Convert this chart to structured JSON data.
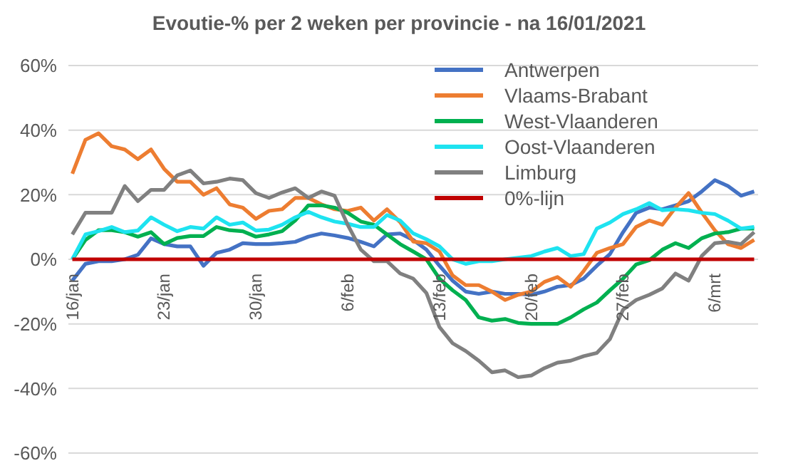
{
  "chart_data": {
    "type": "line",
    "title": "Evoutie-% per 2 weken per provincie - na 16/01/2021",
    "categories": [
      "16/jan",
      null,
      null,
      null,
      null,
      null,
      null,
      "23/jan",
      null,
      null,
      null,
      null,
      null,
      null,
      "30/jan",
      null,
      null,
      null,
      null,
      null,
      null,
      "6/feb",
      null,
      null,
      null,
      null,
      null,
      null,
      "13/feb",
      null,
      null,
      null,
      null,
      null,
      null,
      "20/feb",
      null,
      null,
      null,
      null,
      null,
      null,
      "27/feb",
      null,
      null,
      null,
      null,
      null,
      null,
      "6/mrt",
      null,
      null,
      null
    ],
    "series": [
      {
        "name": "Antwerpen",
        "color": "#4472c4",
        "values": [
          -6.6,
          -1.4,
          -0.6,
          -0.6,
          0,
          1.4,
          6.5,
          4.7,
          4,
          4,
          -2,
          2,
          3,
          5,
          4.7,
          4.7,
          5,
          5.4,
          7,
          8,
          7.4,
          6.6,
          5.4,
          4,
          7.7,
          8,
          6,
          3,
          -2,
          -6.6,
          -10,
          -10.7,
          -10,
          -10.7,
          -10.7,
          -11,
          -10,
          -8.5,
          -8,
          -6,
          -2,
          1.6,
          8.4,
          14.4,
          16,
          15.5,
          16.7,
          18,
          21,
          24.5,
          22.7,
          19.7,
          21
        ]
      },
      {
        "name": "Vlaams-Brabant",
        "color": "#ed7d31",
        "values": [
          26.5,
          37,
          39,
          35,
          34,
          31,
          34,
          28,
          24,
          24,
          20,
          22,
          17,
          16,
          12.5,
          15,
          15.5,
          19,
          19,
          17,
          15.5,
          15,
          16,
          12,
          15.5,
          11.5,
          5.5,
          5,
          2.4,
          -5,
          -8,
          -8,
          -10,
          -12.6,
          -11,
          -10,
          -7,
          -5.5,
          -8.5,
          -3.6,
          2,
          3.5,
          4.7,
          10,
          12,
          10.7,
          16,
          20.5,
          14.5,
          9,
          4.7,
          3.5,
          6
        ]
      },
      {
        "name": "West-Vlaanderen",
        "color": "#00b050",
        "values": [
          0,
          6,
          9,
          9,
          8.4,
          7,
          8.4,
          4.7,
          6.6,
          7.2,
          7.2,
          10,
          9,
          8.7,
          7,
          7.7,
          8.7,
          12,
          16.7,
          16.7,
          16,
          14.4,
          11.7,
          10.7,
          7.7,
          4.7,
          2.4,
          0,
          -6,
          -9.6,
          -12.6,
          -18,
          -19,
          -18.5,
          -19.7,
          -20,
          -20,
          -20,
          -18,
          -15.5,
          -13.4,
          -9.6,
          -6,
          -1.6,
          -0.3,
          3,
          5,
          3.5,
          6.5,
          8,
          8.4,
          9.5,
          9.5
        ]
      },
      {
        "name": "Oost-Vlaanderen",
        "color": "#1ee3f0",
        "values": [
          0,
          7.7,
          8.7,
          10,
          8.4,
          8.9,
          13,
          10.7,
          8.7,
          10,
          9.5,
          13,
          10.7,
          11.4,
          8.9,
          9.2,
          10.7,
          13,
          14.7,
          13,
          11.7,
          11,
          10,
          10,
          13.7,
          12,
          8,
          6.2,
          4,
          0,
          -1.4,
          -0.6,
          -0.6,
          0,
          0.5,
          1,
          2.4,
          3.5,
          1,
          1.6,
          9.5,
          11.4,
          14,
          15.5,
          17.4,
          15.2,
          15.5,
          15.2,
          14.4,
          14,
          12,
          9.5,
          10
        ]
      },
      {
        "name": "Limburg",
        "color": "#808080",
        "values": [
          7.7,
          14.4,
          14.4,
          14.4,
          22.7,
          18,
          21.5,
          21.5,
          26,
          27.5,
          23.5,
          24,
          25,
          24.5,
          20.5,
          19,
          20.7,
          22,
          19,
          21,
          19.7,
          10.7,
          3,
          -0.6,
          -0.6,
          -4.4,
          -6,
          -10.4,
          -21,
          -26,
          -28.4,
          -31.4,
          -35,
          -34.4,
          -36.5,
          -36,
          -33.7,
          -32,
          -31.4,
          -30,
          -29,
          -24.7,
          -15.6,
          -12.6,
          -11,
          -9,
          -4.4,
          -6.6,
          1,
          5,
          5.4,
          4.7,
          8.4
        ]
      },
      {
        "name": "0%-lijn",
        "color": "#c00000",
        "values": [
          0,
          0,
          0,
          0,
          0,
          0,
          0,
          0,
          0,
          0,
          0,
          0,
          0,
          0,
          0,
          0,
          0,
          0,
          0,
          0,
          0,
          0,
          0,
          0,
          0,
          0,
          0,
          0,
          0,
          0,
          0,
          0,
          0,
          0,
          0,
          0,
          0,
          0,
          0,
          0,
          0,
          0,
          0,
          0,
          0,
          0,
          0,
          0,
          0,
          0,
          0,
          0,
          0
        ]
      }
    ],
    "ylim": [
      -60,
      60
    ],
    "yticks": [
      {
        "value": -60,
        "label": "-60%"
      },
      {
        "value": -40,
        "label": "-40%"
      },
      {
        "value": -20,
        "label": "-20%"
      },
      {
        "value": 0,
        "label": "0%"
      },
      {
        "value": 20,
        "label": "20%"
      },
      {
        "value": 40,
        "label": "40%"
      },
      {
        "value": 60,
        "label": "60%"
      }
    ],
    "grid": "y",
    "legend": "top right",
    "marker": "none",
    "line_style": "solid"
  }
}
